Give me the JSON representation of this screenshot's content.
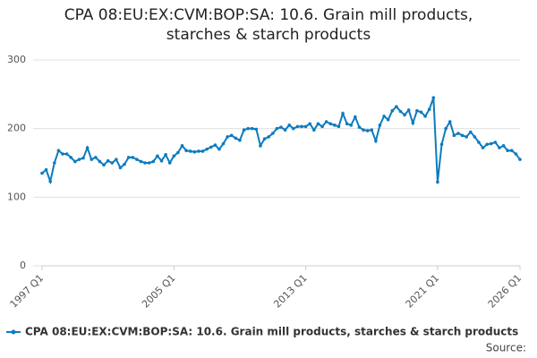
{
  "chart_data": {
    "type": "line",
    "title": "CPA 08:EU:EX:CVM:BOP:SA: 10.6. Grain mill products, starches & starch products",
    "source_label": "Source:",
    "categories": [
      "1997 Q1",
      null,
      null,
      null,
      null,
      null,
      null,
      null,
      null,
      null,
      null,
      null,
      null,
      null,
      null,
      null,
      null,
      null,
      null,
      null,
      null,
      null,
      null,
      null,
      null,
      null,
      null,
      null,
      null,
      null,
      null,
      null,
      "2005 Q1",
      null,
      null,
      null,
      null,
      null,
      null,
      null,
      null,
      null,
      null,
      null,
      null,
      null,
      null,
      null,
      null,
      null,
      null,
      null,
      null,
      null,
      null,
      null,
      null,
      null,
      null,
      null,
      null,
      null,
      null,
      null,
      "2013 Q1",
      null,
      null,
      null,
      null,
      null,
      null,
      null,
      null,
      null,
      null,
      null,
      null,
      null,
      null,
      null,
      null,
      null,
      null,
      null,
      null,
      null,
      null,
      null,
      null,
      null,
      null,
      null,
      null,
      null,
      null,
      null,
      "2021 Q1",
      null,
      null,
      null,
      null,
      null,
      null,
      null,
      null,
      null,
      null,
      null,
      null,
      null,
      null,
      null,
      null,
      null,
      null,
      null,
      "2026 Q1"
    ],
    "series": [
      {
        "name": "CPA 08:EU:EX:CVM:BOP:SA: 10.6. Grain mill products, starches & starch products",
        "color": "#0e7bbf",
        "values": [
          135,
          140,
          123,
          150,
          168,
          163,
          163,
          158,
          152,
          155,
          157,
          172,
          155,
          158,
          152,
          147,
          153,
          150,
          155,
          143,
          148,
          158,
          158,
          155,
          152,
          150,
          150,
          152,
          160,
          153,
          162,
          150,
          160,
          165,
          175,
          168,
          167,
          166,
          167,
          167,
          170,
          173,
          176,
          170,
          178,
          188,
          190,
          186,
          183,
          198,
          200,
          200,
          199,
          175,
          185,
          188,
          193,
          200,
          202,
          198,
          205,
          200,
          203,
          203,
          203,
          207,
          198,
          207,
          203,
          210,
          207,
          205,
          203,
          222,
          207,
          205,
          217,
          202,
          198,
          197,
          198,
          182,
          205,
          218,
          213,
          226,
          232,
          225,
          220,
          227,
          208,
          226,
          224,
          218,
          228,
          245,
          122,
          177,
          200,
          210,
          190,
          193,
          190,
          188,
          195,
          188,
          180,
          172,
          177,
          178,
          180,
          172,
          175,
          168,
          168,
          163,
          155
        ]
      }
    ],
    "ylim": [
      0,
      300
    ],
    "yticks": [
      0,
      100,
      200,
      300
    ],
    "grid": true
  }
}
